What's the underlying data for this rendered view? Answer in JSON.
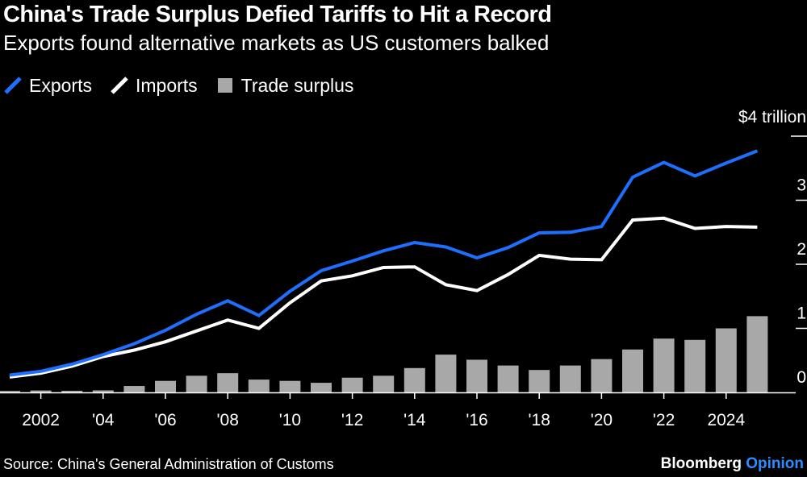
{
  "title": "China's Trade Surplus Defied Tariffs to Hit a Record",
  "subtitle": "Exports found alternative markets as US customers balked",
  "source": "Source: China's General Administration of Customs",
  "brand": {
    "name": "Bloomberg",
    "suffix": "Opinion"
  },
  "legend": [
    {
      "label": "Exports",
      "color": "#1f6fff",
      "kind": "line"
    },
    {
      "label": "Imports",
      "color": "#ffffff",
      "kind": "line"
    },
    {
      "label": "Trade surplus",
      "color": "#a8a8a8",
      "kind": "bar"
    }
  ],
  "chart_data": {
    "type": "line+bar",
    "title": "China's Trade Surplus Defied Tariffs to Hit a Record",
    "ylabel": "$ trillion",
    "ylim": [
      0,
      4
    ],
    "y_ticks": [
      0,
      1,
      2,
      3,
      4
    ],
    "y_tick_labels": [
      "0",
      "1",
      "2",
      "3",
      "$4 trillion"
    ],
    "x": [
      2001,
      2002,
      2003,
      2004,
      2005,
      2006,
      2007,
      2008,
      2009,
      2010,
      2011,
      2012,
      2013,
      2014,
      2015,
      2016,
      2017,
      2018,
      2019,
      2020,
      2021,
      2022,
      2023,
      2024,
      2025
    ],
    "x_ticks": [
      2002,
      2004,
      2006,
      2008,
      2010,
      2012,
      2014,
      2016,
      2018,
      2020,
      2022,
      2024
    ],
    "x_tick_labels": [
      "2002",
      "'04",
      "'06",
      "'08",
      "'10",
      "'12",
      "'14",
      "'16",
      "'18",
      "'20",
      "'22",
      "2024"
    ],
    "series": [
      {
        "name": "Exports",
        "type": "line",
        "color": "#1f6fff",
        "values": [
          0.27,
          0.33,
          0.44,
          0.59,
          0.76,
          0.97,
          1.22,
          1.43,
          1.2,
          1.58,
          1.9,
          2.05,
          2.21,
          2.34,
          2.27,
          2.1,
          2.26,
          2.49,
          2.5,
          2.59,
          3.36,
          3.59,
          3.38,
          3.58,
          3.77
        ]
      },
      {
        "name": "Imports",
        "type": "line",
        "color": "#ffffff",
        "values": [
          0.24,
          0.3,
          0.41,
          0.56,
          0.66,
          0.79,
          0.96,
          1.13,
          1.0,
          1.4,
          1.74,
          1.82,
          1.95,
          1.96,
          1.68,
          1.59,
          1.84,
          2.14,
          2.08,
          2.07,
          2.69,
          2.72,
          2.56,
          2.59,
          2.58
        ]
      },
      {
        "name": "Trade surplus",
        "type": "bar",
        "color": "#a8a8a8",
        "values": [
          0.023,
          0.03,
          0.025,
          0.032,
          0.1,
          0.18,
          0.26,
          0.3,
          0.2,
          0.18,
          0.15,
          0.23,
          0.26,
          0.38,
          0.59,
          0.51,
          0.42,
          0.35,
          0.42,
          0.52,
          0.67,
          0.84,
          0.82,
          1.0,
          1.19
        ]
      }
    ]
  }
}
